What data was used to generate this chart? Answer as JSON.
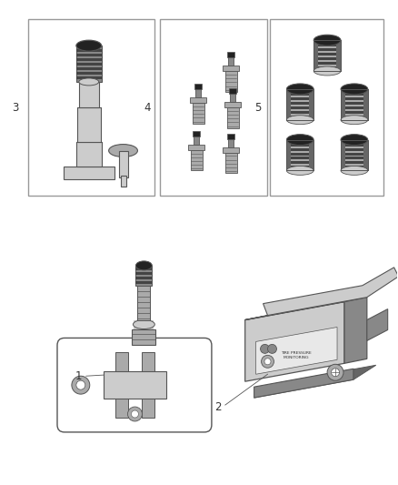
{
  "background_color": "#ffffff",
  "fig_width": 4.38,
  "fig_height": 5.33,
  "dpi": 100,
  "line_color": "#555555",
  "label_color": "#333333",
  "box_edge_color": "#aaaaaa",
  "label_fontsize": 8.5,
  "gray1": "#cccccc",
  "gray2": "#aaaaaa",
  "gray3": "#888888",
  "gray4": "#666666",
  "gray5": "#444444",
  "darkest": "#222222"
}
